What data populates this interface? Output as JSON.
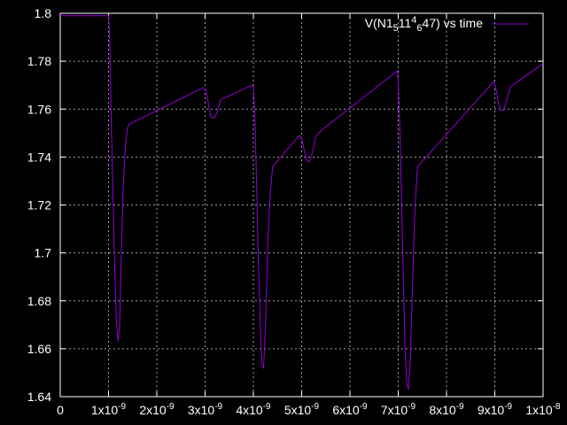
{
  "colors": {
    "background": "#000000",
    "axis": "#ffffff",
    "grid": "#a0a0a0",
    "series": "#9400d3"
  },
  "chart_data": {
    "type": "line",
    "title": "",
    "xlabel": "",
    "ylabel": "",
    "xlim": [
      0,
      1e-08
    ],
    "ylim": [
      1.64,
      1.8
    ],
    "grid": true,
    "legend_position": "top-right",
    "x_ticks": [
      {
        "value": 0,
        "label": "0"
      },
      {
        "value": 1e-09,
        "mant": "1x10",
        "exp": "-9"
      },
      {
        "value": 2e-09,
        "mant": "2x10",
        "exp": "-9"
      },
      {
        "value": 3e-09,
        "mant": "3x10",
        "exp": "-9"
      },
      {
        "value": 4e-09,
        "mant": "4x10",
        "exp": "-9"
      },
      {
        "value": 5e-09,
        "mant": "5x10",
        "exp": "-9"
      },
      {
        "value": 6e-09,
        "mant": "6x10",
        "exp": "-9"
      },
      {
        "value": 7e-09,
        "mant": "7x10",
        "exp": "-9"
      },
      {
        "value": 8e-09,
        "mant": "8x10",
        "exp": "-9"
      },
      {
        "value": 9e-09,
        "mant": "9x10",
        "exp": "-9"
      },
      {
        "value": 1e-08,
        "mant": "1x10",
        "exp": "-8"
      }
    ],
    "y_ticks": [
      {
        "value": 1.64,
        "label": "1.64"
      },
      {
        "value": 1.66,
        "label": "1.66"
      },
      {
        "value": 1.68,
        "label": "1.68"
      },
      {
        "value": 1.7,
        "label": "1.7"
      },
      {
        "value": 1.72,
        "label": "1.72"
      },
      {
        "value": 1.74,
        "label": "1.74"
      },
      {
        "value": 1.76,
        "label": "1.76"
      },
      {
        "value": 1.78,
        "label": "1.78"
      },
      {
        "value": 1.8,
        "label": "1.8"
      }
    ],
    "series": [
      {
        "legend_parts": [
          "V(N1",
          "5",
          "11",
          "4",
          "",
          "6",
          "47) vs time"
        ],
        "x": [
          0,
          1e-09,
          1.01e-09,
          1.03e-09,
          1.05e-09,
          1.08e-09,
          1.12e-09,
          1.16e-09,
          1.2e-09,
          1.23e-09,
          1.26e-09,
          1.3e-09,
          1.35e-09,
          1.4e-09,
          1.45e-09,
          2.97e-09,
          3.02e-09,
          3.07e-09,
          3.12e-09,
          3.2e-09,
          3.25e-09,
          3.32e-09,
          3.98e-09,
          4e-09,
          4.03e-09,
          4.06e-09,
          4.1e-09,
          4.15e-09,
          4.18e-09,
          4.21e-09,
          4.25e-09,
          4.3e-09,
          4.35e-09,
          4.4e-09,
          4.95e-09,
          5e-09,
          5.05e-09,
          5.1e-09,
          5.15e-09,
          5.2e-09,
          5.25e-09,
          5.3e-09,
          5.4e-09,
          6.98e-09,
          7e-09,
          7.03e-09,
          7.06e-09,
          7.1e-09,
          7.14e-09,
          7.18e-09,
          7.21e-09,
          7.25e-09,
          7.3e-09,
          7.35e-09,
          7.4e-09,
          8.98e-09,
          9.03e-09,
          9.08e-09,
          9.12e-09,
          9.18e-09,
          9.25e-09,
          9.33e-09,
          1e-08
        ],
        "y": [
          1.799,
          1.799,
          1.796,
          1.785,
          1.762,
          1.735,
          1.7,
          1.672,
          1.663,
          1.67,
          1.695,
          1.725,
          1.745,
          1.753,
          1.754,
          1.769,
          1.768,
          1.762,
          1.7565,
          1.7565,
          1.759,
          1.764,
          1.77,
          1.769,
          1.758,
          1.735,
          1.7,
          1.666,
          1.653,
          1.652,
          1.668,
          1.705,
          1.725,
          1.736,
          1.749,
          1.748,
          1.743,
          1.739,
          1.738,
          1.74,
          1.745,
          1.749,
          1.751,
          1.776,
          1.771,
          1.755,
          1.73,
          1.695,
          1.66,
          1.645,
          1.643,
          1.655,
          1.69,
          1.72,
          1.736,
          1.7715,
          1.768,
          1.762,
          1.7595,
          1.7595,
          1.764,
          1.7695,
          1.779
        ]
      }
    ]
  }
}
